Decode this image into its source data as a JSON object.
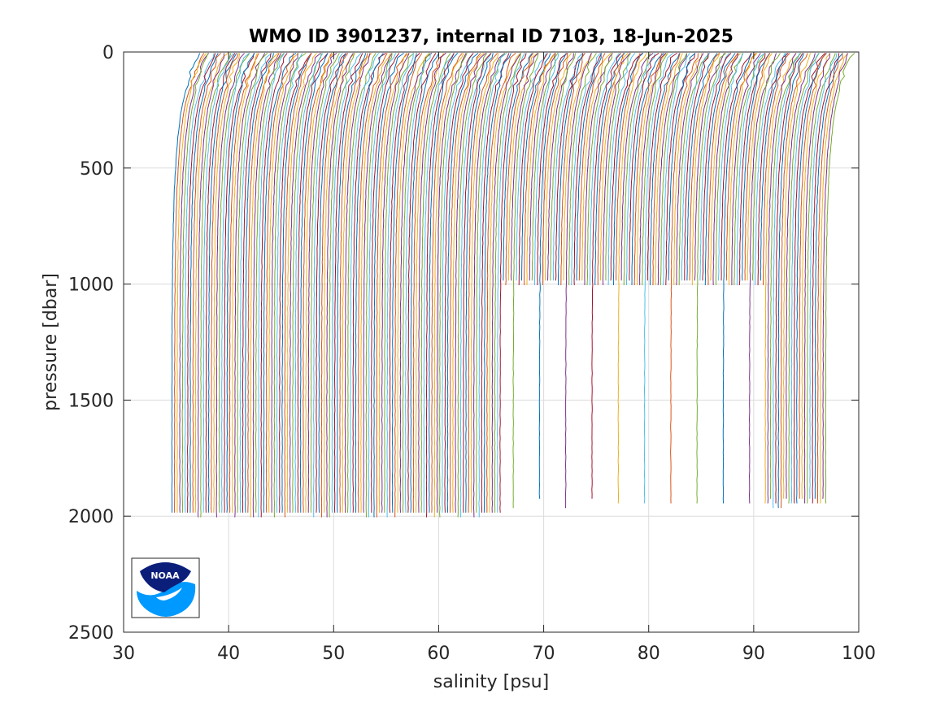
{
  "chart_data": {
    "type": "line",
    "title": "WMO ID 3901237, internal ID 7103, 18-Jun-2025",
    "xlabel": "salinity [psu]",
    "ylabel": "pressure [dbar]",
    "xlim": [
      30,
      100
    ],
    "ylim": [
      0,
      2500
    ],
    "y_reversed": true,
    "grid": true,
    "xticks": [
      "30",
      "40",
      "50",
      "60",
      "70",
      "80",
      "90",
      "100"
    ],
    "yticks": [
      "0",
      "500",
      "1000",
      "1500",
      "2000",
      "2500"
    ],
    "series_description": "Overlapping salinity profiles, each shifted by a cumulative offset of about 0.25 psu",
    "profiles": {
      "count": 250,
      "offset_step_psu": 0.25,
      "first_start_psu": 34.6,
      "deep_profiles": {
        "count": 126,
        "max_pressure_dbar": 2000
      },
      "shallow_profiles": {
        "count": 100,
        "max_pressure_dbar": 1000
      },
      "mid_profiles": {
        "count": 24,
        "max_pressure_dbar": 1970
      }
    },
    "palette": [
      "#0072BD",
      "#D95319",
      "#EDB120",
      "#7E2F8E",
      "#77AC30",
      "#4DBEEE",
      "#A2142F"
    ]
  },
  "logo": {
    "name": "NOAA",
    "text": "NOAA",
    "colors": {
      "dark": "#0b1f7a",
      "light": "#0099ff"
    }
  }
}
